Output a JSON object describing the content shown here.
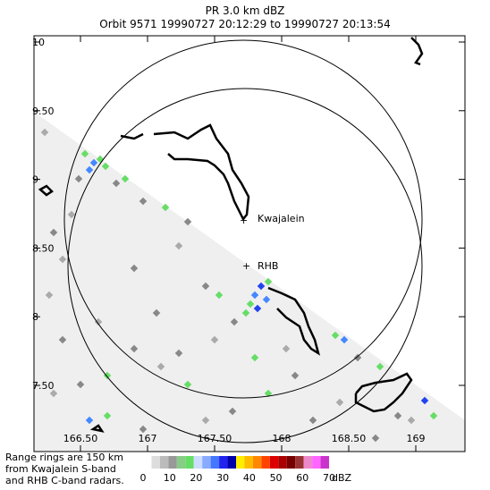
{
  "header": {
    "title": "PR  3.0 km dBZ",
    "subtitle": "Orbit 9571 19990727 20:12:29 to 19990727 20:13:54"
  },
  "map": {
    "xticks": [
      {
        "value": 166.5,
        "label": "166.50"
      },
      167,
      {
        "value": 167.5,
        "label": "167.50"
      },
      168,
      {
        "value": 168.5,
        "label": "168.50"
      },
      169
    ],
    "yticks": [
      10,
      {
        "value": 9.5,
        "label": "9.50"
      },
      9,
      {
        "value": 8.5,
        "label": "8.50"
      },
      8,
      {
        "value": 7.5,
        "label": "7.50"
      }
    ],
    "places": [
      "Kwajalein",
      "RHB"
    ]
  },
  "note": [
    "Range rings are 150 km",
    "from Kwajalein S-band",
    "and RHB C-band radars."
  ],
  "colorbar": {
    "ticks": [
      0,
      10,
      20,
      30,
      40,
      50,
      60,
      70
    ],
    "unit": "dBZ"
  }
}
